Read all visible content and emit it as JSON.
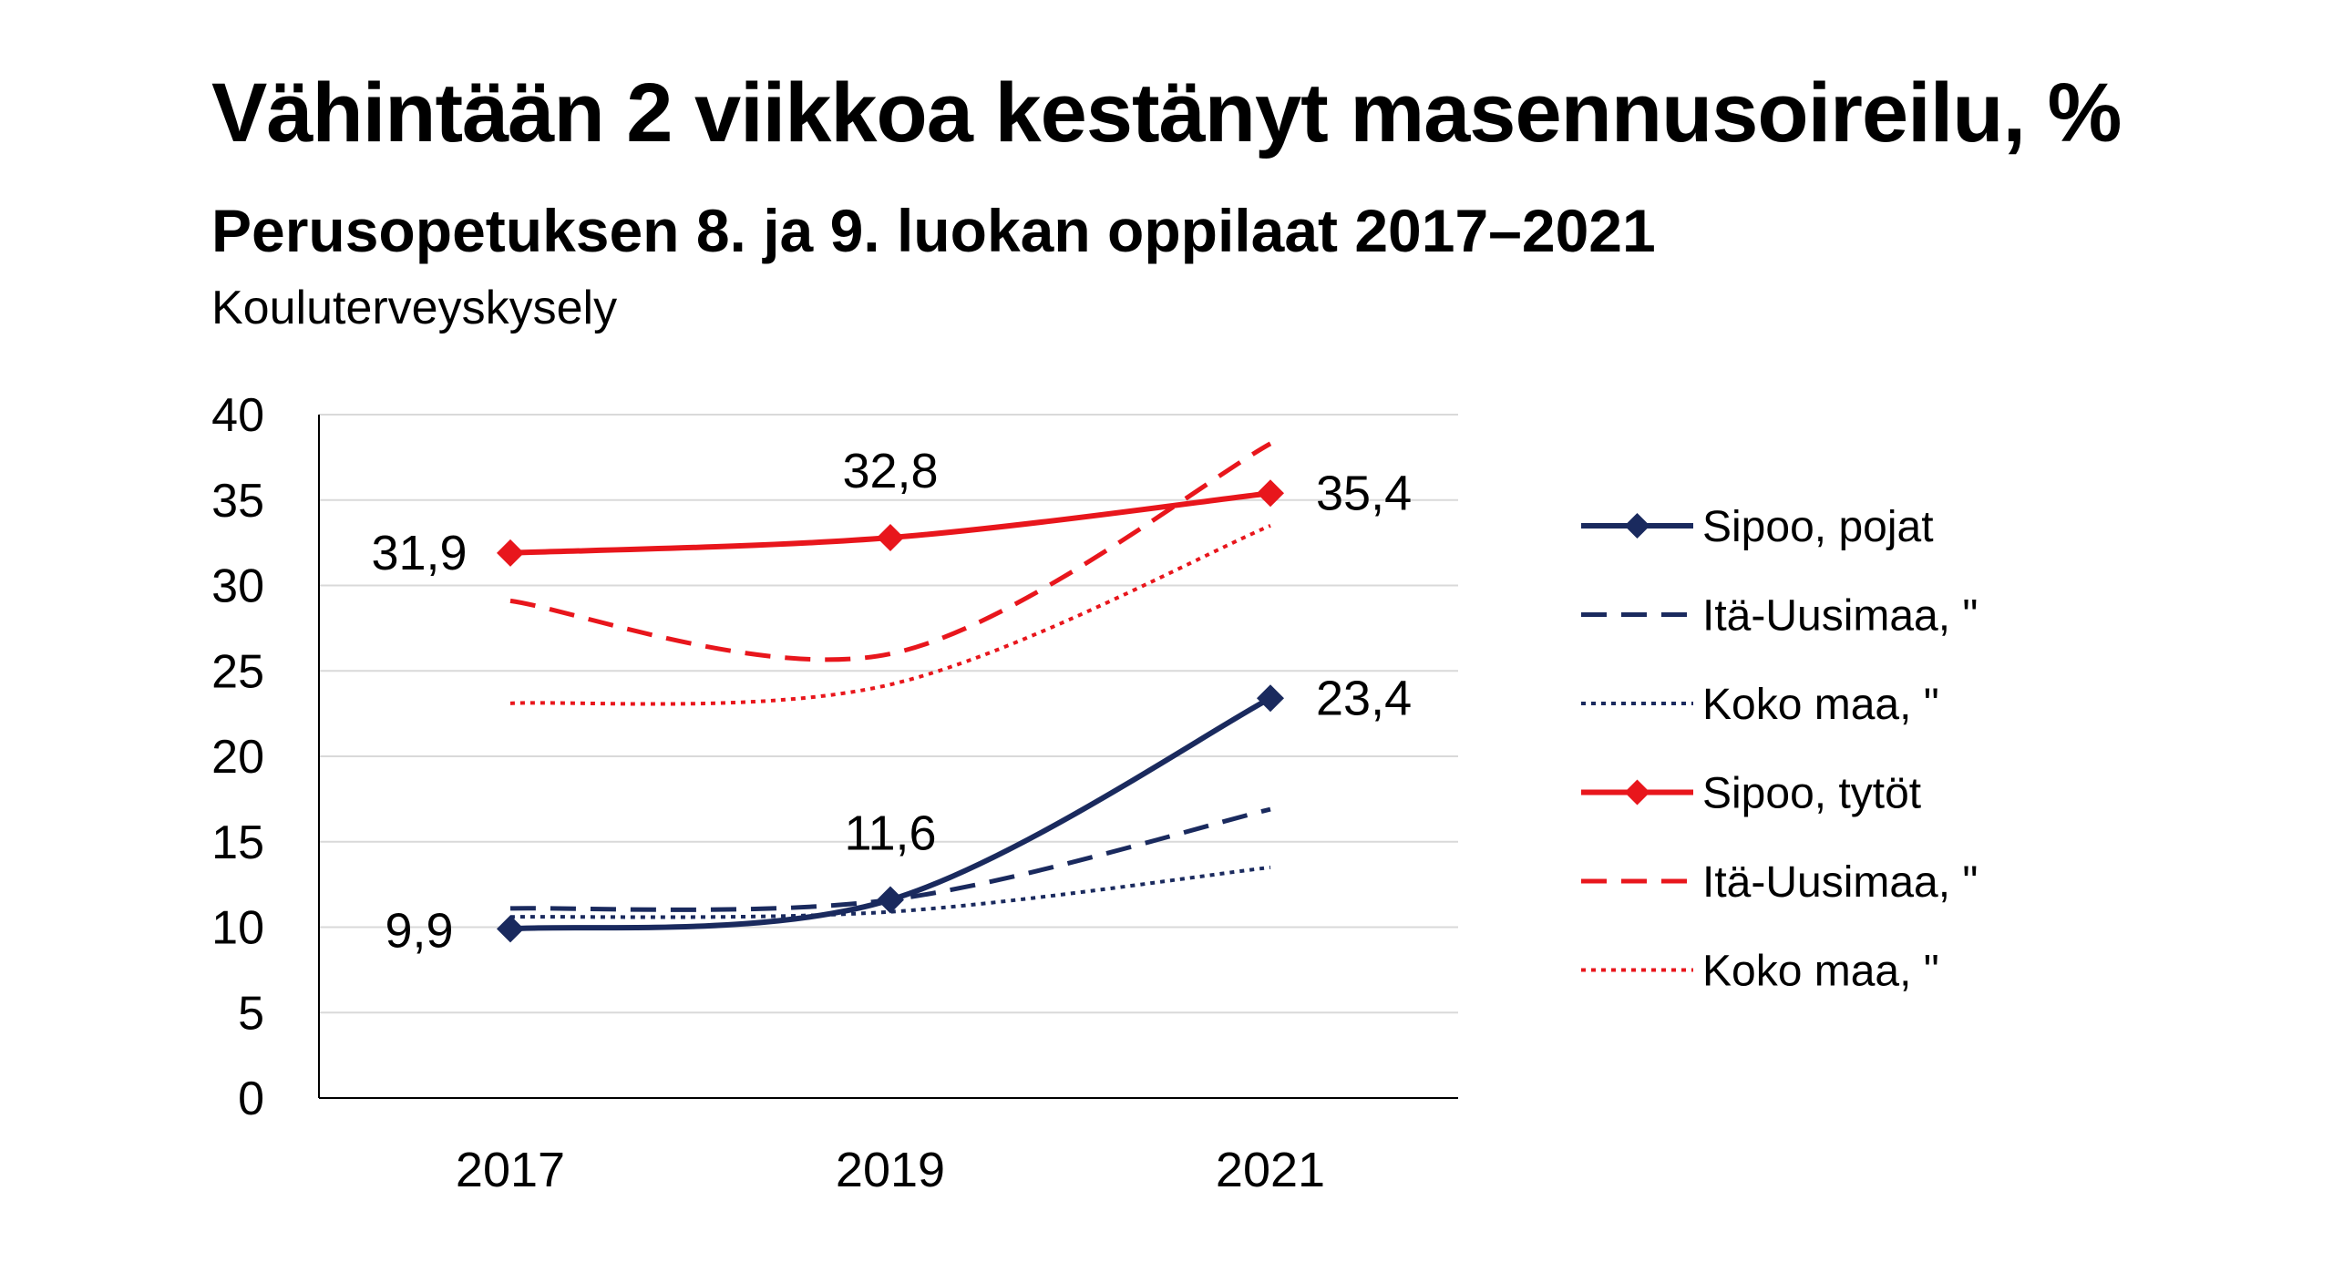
{
  "chart_data": {
    "type": "line",
    "title": "Vähintään 2 viikkoa kestänyt masennusoireilu, %",
    "subtitle": "Perusopetuksen 8. ja 9. luokan oppilaat 2017–2021",
    "source": "Kouluterveyskysely",
    "categories": [
      "2017",
      "2019",
      "2021"
    ],
    "ylim": [
      0,
      40
    ],
    "yticks": [
      "0",
      "5",
      "10",
      "15",
      "20",
      "25",
      "30",
      "35",
      "40"
    ],
    "grid": true,
    "legend_position": "right",
    "series": [
      {
        "name": "Sipoo, pojat",
        "values": [
          9.9,
          11.6,
          23.4
        ],
        "labels": [
          "9,9",
          "11,6",
          "23,4"
        ],
        "color": "#1a2a5e",
        "style": "solid",
        "marker": "diamond"
      },
      {
        "name": "Itä-Uusimaa, \"",
        "values": [
          11.1,
          11.6,
          16.9
        ],
        "color": "#1a2a5e",
        "style": "dashed",
        "marker": "none"
      },
      {
        "name": "Koko maa, \"",
        "values": [
          10.6,
          10.9,
          13.5
        ],
        "color": "#1a2a5e",
        "style": "dotted",
        "marker": "none"
      },
      {
        "name": "Sipoo, tytöt",
        "values": [
          31.9,
          32.8,
          35.4
        ],
        "labels": [
          "31,9",
          "32,8",
          "35,4"
        ],
        "color": "#e8161c",
        "style": "solid",
        "marker": "diamond"
      },
      {
        "name": "Itä-Uusimaa, \"",
        "values": [
          29.1,
          26.0,
          38.3
        ],
        "color": "#e8161c",
        "style": "dashed",
        "marker": "none"
      },
      {
        "name": "Koko maa, \"",
        "values": [
          23.1,
          24.2,
          33.5
        ],
        "color": "#e8161c",
        "style": "dotted",
        "marker": "none"
      }
    ]
  }
}
